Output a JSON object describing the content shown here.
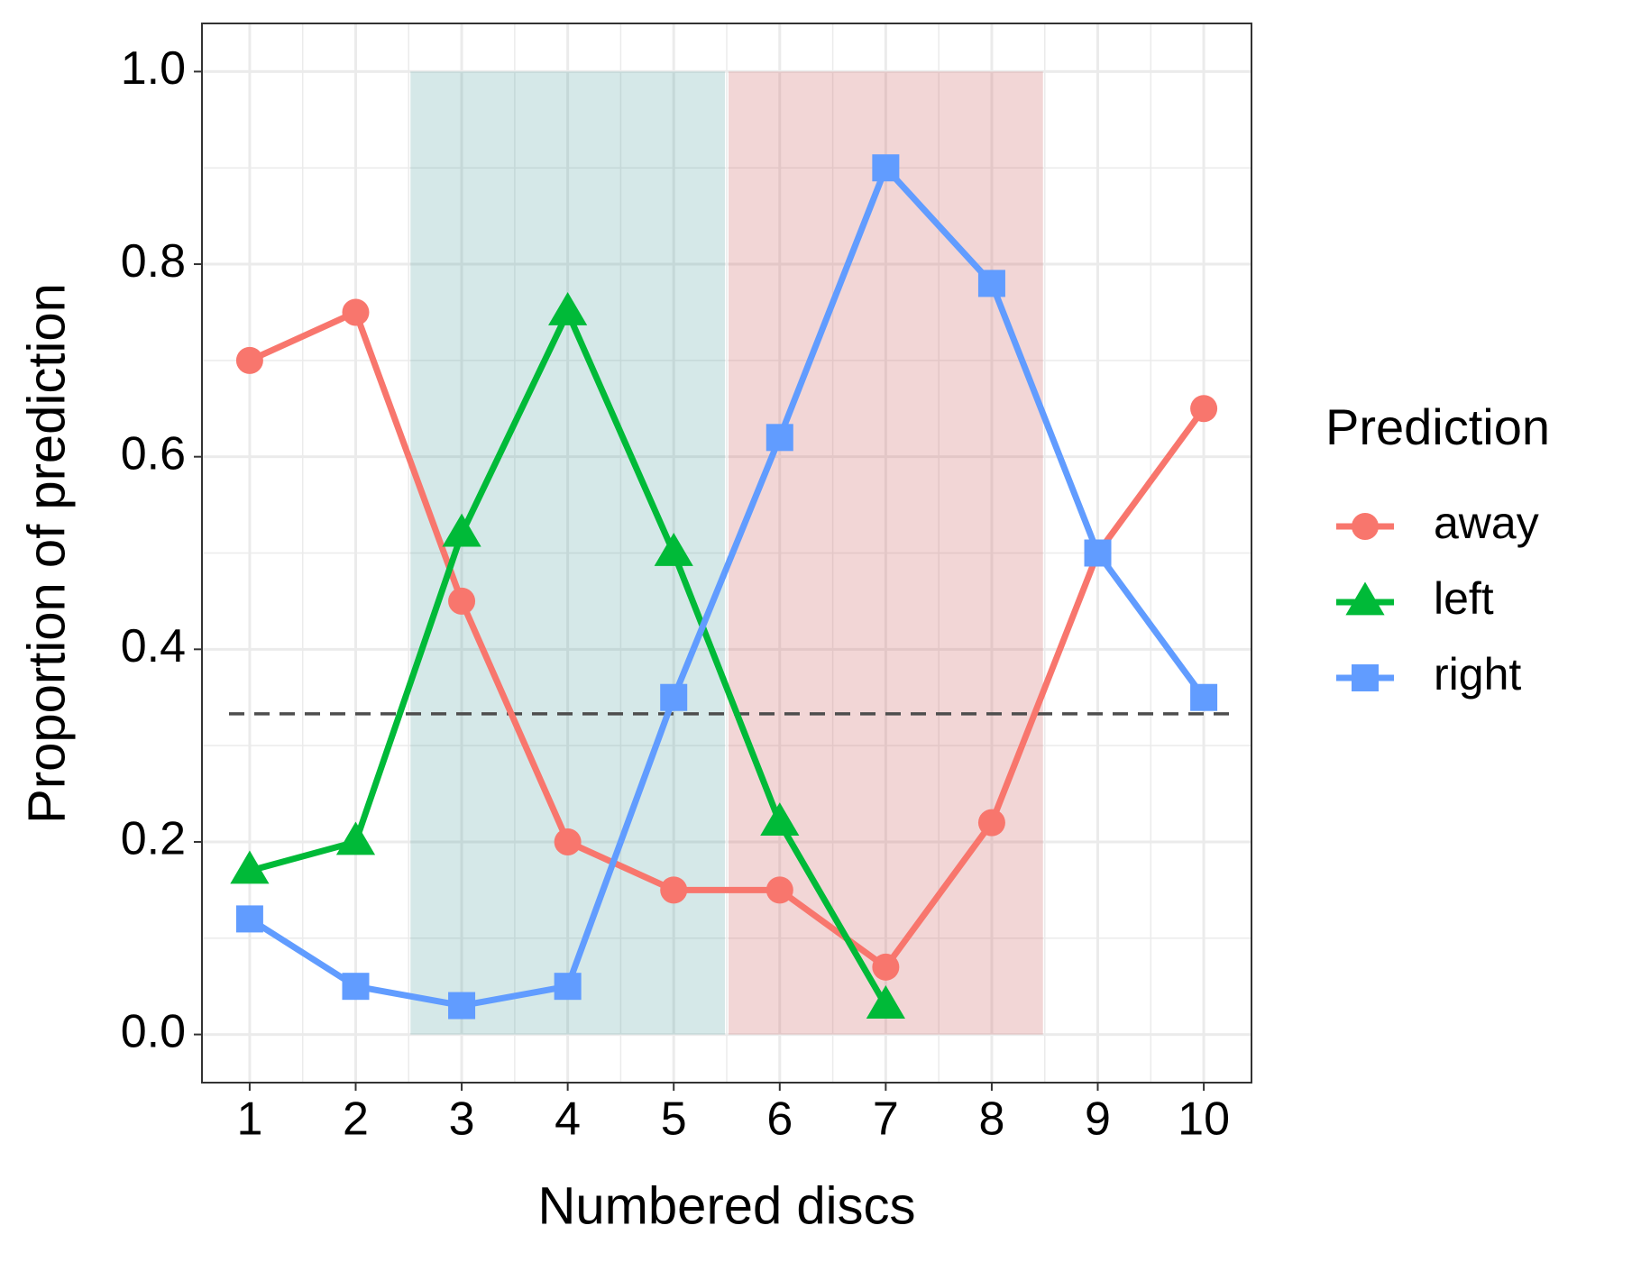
{
  "chart_data": {
    "type": "line",
    "x_label": "Numbered discs",
    "y_label": "Proportion of prediction",
    "legend_title": "Prediction",
    "legend": "right",
    "grid": true,
    "x": [
      1,
      2,
      3,
      4,
      5,
      6,
      7,
      8,
      9,
      10
    ],
    "series": [
      {
        "name": "away",
        "color": "#F8766D",
        "marker": "circle",
        "values": [
          0.7,
          0.75,
          0.45,
          0.2,
          0.15,
          0.15,
          0.07,
          0.22,
          0.5,
          0.65
        ]
      },
      {
        "name": "left",
        "color": "#00BA38",
        "marker": "triangle",
        "values": [
          0.17,
          0.2,
          0.52,
          0.75,
          0.5,
          0.22,
          0.03,
          null,
          null,
          null
        ]
      },
      {
        "name": "right",
        "color": "#619CFF",
        "marker": "square",
        "values": [
          0.12,
          0.05,
          0.03,
          0.05,
          0.35,
          0.62,
          0.9,
          0.78,
          0.5,
          0.35
        ]
      }
    ],
    "bands": [
      {
        "x": [
          2.5,
          5.5
        ],
        "y": [
          0,
          1
        ],
        "color": "#2e8b8b",
        "opacity": 0.2
      },
      {
        "x": [
          5.5,
          8.5
        ],
        "y": [
          0,
          1
        ],
        "color": "#cd5c5c",
        "opacity": 0.25
      }
    ],
    "hline": {
      "value": 0.333,
      "color": "#4d4d4d",
      "dashed": true
    },
    "xlim": [
      0.55,
      10.45
    ],
    "ylim": [
      -0.05,
      1.05
    ],
    "xticks": [
      1,
      2,
      3,
      4,
      5,
      6,
      7,
      8,
      9,
      10
    ],
    "yticks": [
      {
        "value": 0,
        "label": "0.0"
      },
      {
        "value": 0.2,
        "label": "0.2"
      },
      {
        "value": 0.4,
        "label": "0.4"
      },
      {
        "value": 0.6,
        "label": "0.6"
      },
      {
        "value": 0.8,
        "label": "0.8"
      },
      {
        "value": 1.0,
        "label": "1.0"
      }
    ]
  }
}
